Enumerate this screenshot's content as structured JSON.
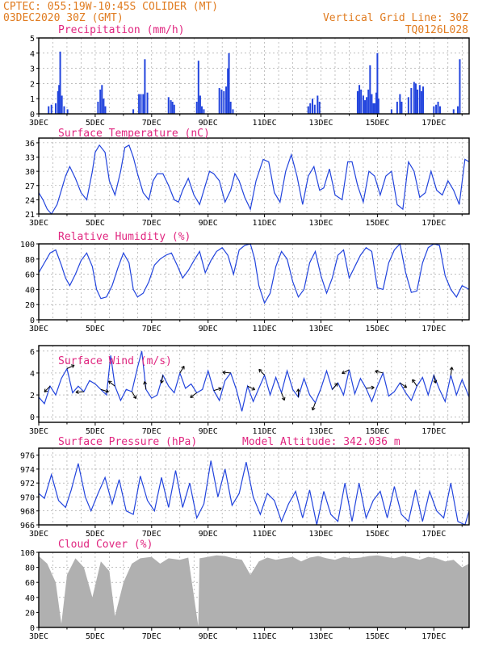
{
  "header": {
    "left_line1": "CPTEC:   055:19W-10:45S   COLIDER (MT)",
    "left_line2": "03DEC2020 30Z (GMT)",
    "right_line1": "Vertical Grid Line: 30Z",
    "right_line2": "TQ0126L028"
  },
  "colors": {
    "series": "#2244dd",
    "title": "#e0257f",
    "header": "#e07b1f",
    "cloud": "#b0b0b0"
  },
  "chart_data": [
    {
      "type": "bar",
      "title": "Precipitation (mm/h)",
      "ylim": [
        0,
        5
      ],
      "yticks": [
        0,
        1,
        2,
        3,
        4,
        5
      ],
      "xlim_days": [
        3,
        18.25
      ],
      "date_ticks": [
        "3DEC",
        "5DEC",
        "7DEC",
        "9DEC",
        "11DEC",
        "13DEC",
        "15DEC",
        "17DEC"
      ],
      "bars": [
        {
          "day": 3.35,
          "value": 0.5
        },
        {
          "day": 3.45,
          "value": 0.6
        },
        {
          "day": 3.6,
          "value": 0.7
        },
        {
          "day": 3.68,
          "value": 1.5
        },
        {
          "day": 3.72,
          "value": 1.9
        },
        {
          "day": 3.76,
          "value": 4.1
        },
        {
          "day": 3.82,
          "value": 1.2
        },
        {
          "day": 3.9,
          "value": 0.5
        },
        {
          "day": 4.02,
          "value": 0.3
        },
        {
          "day": 5.1,
          "value": 0.8
        },
        {
          "day": 5.18,
          "value": 1.6
        },
        {
          "day": 5.24,
          "value": 1.9
        },
        {
          "day": 5.3,
          "value": 1.0
        },
        {
          "day": 5.36,
          "value": 0.5
        },
        {
          "day": 6.35,
          "value": 0.3
        },
        {
          "day": 6.55,
          "value": 1.3
        },
        {
          "day": 6.62,
          "value": 1.3
        },
        {
          "day": 6.7,
          "value": 1.3
        },
        {
          "day": 6.76,
          "value": 3.6
        },
        {
          "day": 6.85,
          "value": 1.4
        },
        {
          "day": 7.6,
          "value": 1.1
        },
        {
          "day": 7.68,
          "value": 0.9
        },
        {
          "day": 7.74,
          "value": 0.8
        },
        {
          "day": 7.8,
          "value": 0.6
        },
        {
          "day": 8.6,
          "value": 0.8
        },
        {
          "day": 8.66,
          "value": 3.5
        },
        {
          "day": 8.72,
          "value": 1.2
        },
        {
          "day": 8.78,
          "value": 0.5
        },
        {
          "day": 8.85,
          "value": 0.3
        },
        {
          "day": 9.4,
          "value": 1.7
        },
        {
          "day": 9.48,
          "value": 1.6
        },
        {
          "day": 9.56,
          "value": 1.5
        },
        {
          "day": 9.64,
          "value": 1.8
        },
        {
          "day": 9.7,
          "value": 3.0
        },
        {
          "day": 9.74,
          "value": 4.0
        },
        {
          "day": 9.8,
          "value": 0.8
        },
        {
          "day": 9.88,
          "value": 0.3
        },
        {
          "day": 12.55,
          "value": 0.5
        },
        {
          "day": 12.62,
          "value": 0.7
        },
        {
          "day": 12.7,
          "value": 1.0
        },
        {
          "day": 12.78,
          "value": 0.6
        },
        {
          "day": 12.88,
          "value": 1.2
        },
        {
          "day": 12.95,
          "value": 0.8
        },
        {
          "day": 14.3,
          "value": 1.5
        },
        {
          "day": 14.36,
          "value": 1.9
        },
        {
          "day": 14.42,
          "value": 1.6
        },
        {
          "day": 14.5,
          "value": 1.2
        },
        {
          "day": 14.56,
          "value": 0.9
        },
        {
          "day": 14.62,
          "value": 1.1
        },
        {
          "day": 14.68,
          "value": 1.6
        },
        {
          "day": 14.74,
          "value": 3.2
        },
        {
          "day": 14.8,
          "value": 1.3
        },
        {
          "day": 14.86,
          "value": 0.7
        },
        {
          "day": 14.9,
          "value": 0.7
        },
        {
          "day": 14.96,
          "value": 1.4
        },
        {
          "day": 15.0,
          "value": 4.0
        },
        {
          "day": 15.04,
          "value": 1.0
        },
        {
          "day": 15.5,
          "value": 0.3
        },
        {
          "day": 15.7,
          "value": 0.8
        },
        {
          "day": 15.8,
          "value": 1.3
        },
        {
          "day": 15.86,
          "value": 0.8
        },
        {
          "day": 16.1,
          "value": 1.1
        },
        {
          "day": 16.2,
          "value": 1.7
        },
        {
          "day": 16.3,
          "value": 2.1
        },
        {
          "day": 16.36,
          "value": 2.0
        },
        {
          "day": 16.42,
          "value": 1.6
        },
        {
          "day": 16.5,
          "value": 1.9
        },
        {
          "day": 16.56,
          "value": 1.5
        },
        {
          "day": 16.62,
          "value": 1.8
        },
        {
          "day": 17.0,
          "value": 0.5
        },
        {
          "day": 17.08,
          "value": 0.6
        },
        {
          "day": 17.15,
          "value": 0.8
        },
        {
          "day": 17.22,
          "value": 0.5
        },
        {
          "day": 17.7,
          "value": 0.3
        },
        {
          "day": 17.85,
          "value": 0.5
        },
        {
          "day": 17.92,
          "value": 3.6
        }
      ]
    },
    {
      "type": "line",
      "title": "Surface Temperature (nC)",
      "ylim": [
        21,
        37
      ],
      "yticks": [
        21,
        24,
        27,
        30,
        33,
        36
      ],
      "xlim_days": [
        3,
        18.25
      ],
      "date_ticks": [
        "3DEC",
        "5DEC",
        "7DEC",
        "9DEC",
        "11DEC",
        "13DEC",
        "15DEC",
        "17DEC"
      ],
      "x": [
        3.0,
        3.15,
        3.3,
        3.45,
        3.65,
        3.8,
        3.95,
        4.1,
        4.3,
        4.5,
        4.7,
        4.9,
        5.0,
        5.15,
        5.35,
        5.5,
        5.7,
        5.9,
        6.05,
        6.2,
        6.35,
        6.5,
        6.7,
        6.9,
        7.05,
        7.2,
        7.4,
        7.6,
        7.8,
        7.95,
        8.1,
        8.3,
        8.5,
        8.7,
        8.9,
        9.05,
        9.2,
        9.4,
        9.6,
        9.8,
        9.95,
        10.1,
        10.3,
        10.5,
        10.7,
        10.95,
        11.15,
        11.35,
        11.55,
        11.75,
        11.95,
        12.15,
        12.35,
        12.55,
        12.75,
        12.95,
        13.1,
        13.3,
        13.5,
        13.75,
        13.95,
        14.1,
        14.3,
        14.5,
        14.7,
        14.9,
        15.1,
        15.3,
        15.5,
        15.7,
        15.9,
        16.1,
        16.3,
        16.5,
        16.7,
        16.9,
        17.1,
        17.3,
        17.5,
        17.7,
        17.9,
        18.1,
        18.25
      ],
      "y": [
        25.5,
        24.0,
        22.0,
        21.0,
        23.0,
        26.0,
        29.0,
        31.0,
        28.5,
        25.5,
        24.0,
        30.0,
        34.0,
        35.5,
        34.0,
        28.0,
        25.0,
        30.0,
        35.0,
        35.5,
        33.0,
        29.5,
        25.5,
        24.0,
        28.0,
        29.5,
        29.5,
        27.0,
        24.0,
        23.5,
        26.0,
        28.5,
        25.0,
        23.0,
        27.0,
        30.0,
        29.5,
        28.0,
        23.5,
        26.0,
        29.5,
        28.0,
        24.5,
        22.0,
        28.0,
        32.5,
        32.0,
        25.5,
        23.5,
        30.0,
        33.5,
        29.0,
        23.0,
        29.0,
        31.0,
        26.0,
        26.5,
        30.5,
        25.0,
        24.0,
        32.0,
        32.0,
        27.0,
        23.5,
        30.0,
        29.0,
        25.0,
        29.0,
        30.0,
        23.0,
        22.0,
        32.0,
        30.0,
        24.5,
        25.5,
        30.0,
        26.0,
        25.0,
        28.0,
        26.0,
        23.0,
        32.5,
        32.0
      ]
    },
    {
      "type": "line",
      "title": "Relative Humidity (%)",
      "ylim": [
        0,
        100
      ],
      "yticks": [
        0,
        20,
        40,
        60,
        80,
        100
      ],
      "xlim_days": [
        3,
        18.25
      ],
      "date_ticks": [
        "3DEC",
        "5DEC",
        "7DEC",
        "9DEC",
        "11DEC",
        "13DEC",
        "15DEC",
        "17DEC"
      ],
      "x": [
        3.0,
        3.2,
        3.4,
        3.6,
        3.8,
        3.95,
        4.1,
        4.3,
        4.5,
        4.7,
        4.9,
        5.05,
        5.2,
        5.4,
        5.6,
        5.8,
        6.0,
        6.2,
        6.35,
        6.5,
        6.7,
        6.9,
        7.1,
        7.3,
        7.5,
        7.7,
        7.9,
        8.1,
        8.3,
        8.5,
        8.7,
        8.9,
        9.1,
        9.3,
        9.5,
        9.7,
        9.9,
        10.1,
        10.3,
        10.5,
        10.65,
        10.8,
        11.0,
        11.2,
        11.4,
        11.6,
        11.8,
        12.0,
        12.2,
        12.4,
        12.6,
        12.8,
        13.0,
        13.2,
        13.4,
        13.6,
        13.8,
        14.0,
        14.2,
        14.4,
        14.6,
        14.8,
        15.0,
        15.2,
        15.4,
        15.6,
        15.8,
        16.0,
        16.2,
        16.4,
        16.6,
        16.8,
        17.0,
        17.2,
        17.4,
        17.6,
        17.8,
        18.0,
        18.25
      ],
      "y": [
        62,
        75,
        88,
        92,
        72,
        55,
        45,
        60,
        78,
        88,
        70,
        40,
        28,
        30,
        45,
        68,
        88,
        75,
        40,
        30,
        35,
        50,
        72,
        80,
        85,
        88,
        72,
        55,
        65,
        78,
        90,
        62,
        78,
        90,
        95,
        85,
        60,
        92,
        98,
        100,
        80,
        45,
        22,
        35,
        70,
        90,
        80,
        50,
        30,
        40,
        75,
        90,
        58,
        35,
        55,
        85,
        92,
        55,
        70,
        85,
        95,
        90,
        42,
        40,
        75,
        92,
        100,
        62,
        36,
        38,
        75,
        95,
        100,
        98,
        58,
        40,
        30,
        45,
        40
      ]
    },
    {
      "type": "line",
      "title": "Surface Wind (m/s)",
      "ylim": [
        -0.5,
        6.5
      ],
      "yticks": [
        0,
        2,
        4,
        6
      ],
      "xlim_days": [
        3,
        18.25
      ],
      "date_ticks": [
        "3DEC",
        "5DEC",
        "7DEC",
        "9DEC",
        "11DEC",
        "13DEC",
        "15DEC",
        "17DEC"
      ],
      "x": [
        3.0,
        3.2,
        3.4,
        3.6,
        3.8,
        4.0,
        4.2,
        4.4,
        4.6,
        4.8,
        5.0,
        5.2,
        5.4,
        5.55,
        5.7,
        5.9,
        6.1,
        6.3,
        6.5,
        6.65,
        6.8,
        7.0,
        7.2,
        7.4,
        7.6,
        7.8,
        8.0,
        8.2,
        8.4,
        8.6,
        8.8,
        9.0,
        9.2,
        9.4,
        9.6,
        9.8,
        10.0,
        10.2,
        10.4,
        10.6,
        10.8,
        11.0,
        11.2,
        11.4,
        11.6,
        11.8,
        12.0,
        12.2,
        12.4,
        12.6,
        12.8,
        13.0,
        13.2,
        13.4,
        13.6,
        13.8,
        14.0,
        14.2,
        14.4,
        14.6,
        14.8,
        15.0,
        15.2,
        15.4,
        15.6,
        15.8,
        16.0,
        16.2,
        16.4,
        16.6,
        16.8,
        17.0,
        17.2,
        17.4,
        17.6,
        17.8,
        18.0,
        18.25
      ],
      "y": [
        1.8,
        1.2,
        2.8,
        2.0,
        3.5,
        4.4,
        2.2,
        2.8,
        2.3,
        3.3,
        3.0,
        2.5,
        2.0,
        5.6,
        2.8,
        1.5,
        2.5,
        2.3,
        4.5,
        6.0,
        2.5,
        1.7,
        2.0,
        3.8,
        2.8,
        2.2,
        4.0,
        2.6,
        3.0,
        2.2,
        2.5,
        4.2,
        2.4,
        1.5,
        3.3,
        4.0,
        2.5,
        0.5,
        2.8,
        1.4,
        2.6,
        3.8,
        2.0,
        3.6,
        2.2,
        4.2,
        2.5,
        1.8,
        3.5,
        2.0,
        1.3,
        2.6,
        4.2,
        2.5,
        3.1,
        2.0,
        4.3,
        2.1,
        3.5,
        2.6,
        1.4,
        2.8,
        4.0,
        1.9,
        2.3,
        3.1,
        2.2,
        1.5,
        2.8,
        3.6,
        2.0,
        3.8,
        2.5,
        1.4,
        3.8,
        2.0,
        3.4,
        1.8
      ]
    },
    {
      "type": "line",
      "title": "Surface Pressure (hPa)",
      "annotation": "Model Altitude: 342.036 m",
      "ylim": [
        966,
        977
      ],
      "yticks": [
        966,
        968,
        970,
        972,
        974,
        976
      ],
      "xlim_days": [
        3,
        18.25
      ],
      "date_ticks": [
        "3DEC",
        "5DEC",
        "7DEC",
        "9DEC",
        "11DEC",
        "13DEC",
        "15DEC",
        "17DEC"
      ],
      "x": [
        3.0,
        3.2,
        3.45,
        3.7,
        3.95,
        4.15,
        4.4,
        4.65,
        4.85,
        5.1,
        5.35,
        5.6,
        5.85,
        6.1,
        6.35,
        6.6,
        6.85,
        7.1,
        7.35,
        7.6,
        7.85,
        8.1,
        8.35,
        8.6,
        8.85,
        9.1,
        9.35,
        9.6,
        9.85,
        10.1,
        10.35,
        10.6,
        10.85,
        11.1,
        11.35,
        11.6,
        11.85,
        12.1,
        12.35,
        12.6,
        12.85,
        13.1,
        13.35,
        13.6,
        13.85,
        14.1,
        14.35,
        14.6,
        14.85,
        15.1,
        15.35,
        15.6,
        15.85,
        16.1,
        16.35,
        16.6,
        16.85,
        17.1,
        17.35,
        17.6,
        17.85,
        18.1,
        18.25
      ],
      "y": [
        970.5,
        969.8,
        973.2,
        969.5,
        968.5,
        971.0,
        974.8,
        970.0,
        968.0,
        970.5,
        972.8,
        969.0,
        972.5,
        968.0,
        967.5,
        973.0,
        969.5,
        968.0,
        972.8,
        968.5,
        973.8,
        968.5,
        972.0,
        967.0,
        969.0,
        975.2,
        970.0,
        974.0,
        968.8,
        970.5,
        975.0,
        970.0,
        967.5,
        970.5,
        969.5,
        966.5,
        969.0,
        970.8,
        967.0,
        971.0,
        966.0,
        970.8,
        967.5,
        966.5,
        972.0,
        966.5,
        972.0,
        967.0,
        969.5,
        970.8,
        967.0,
        971.5,
        967.5,
        966.5,
        971.0,
        966.5,
        970.8,
        968.0,
        967.0,
        972.0,
        966.5,
        966.0,
        968.0
      ]
    },
    {
      "type": "bar",
      "title": "Cloud Cover (%)",
      "ylim": [
        0,
        100
      ],
      "yticks": [
        0,
        20,
        40,
        60,
        80,
        100
      ],
      "xlim_days": [
        3,
        18.25
      ],
      "date_ticks": [
        "3DEC",
        "5DEC",
        "7DEC",
        "9DEC",
        "11DEC",
        "13DEC",
        "15DEC",
        "17DEC"
      ],
      "x": [
        3.0,
        3.3,
        3.6,
        3.8,
        4.0,
        4.3,
        4.6,
        4.9,
        5.2,
        5.5,
        5.7,
        6.0,
        6.3,
        6.6,
        7.0,
        7.3,
        7.6,
        8.0,
        8.3,
        8.65,
        8.7,
        9.0,
        9.3,
        9.6,
        9.9,
        10.2,
        10.5,
        10.8,
        11.1,
        11.4,
        11.7,
        12.0,
        12.3,
        12.6,
        12.9,
        13.2,
        13.5,
        13.8,
        14.1,
        14.4,
        14.7,
        15.0,
        15.3,
        15.6,
        15.9,
        16.2,
        16.5,
        16.8,
        17.1,
        17.4,
        17.7,
        18.0,
        18.25
      ],
      "y": [
        95,
        85,
        60,
        5,
        70,
        92,
        80,
        40,
        88,
        75,
        15,
        60,
        85,
        92,
        94,
        85,
        92,
        90,
        93,
        2,
        92,
        94,
        96,
        95,
        92,
        90,
        70,
        88,
        93,
        90,
        92,
        94,
        88,
        93,
        95,
        92,
        90,
        94,
        92,
        93,
        95,
        96,
        94,
        92,
        95,
        93,
        90,
        94,
        92,
        88,
        90,
        80,
        85
      ]
    }
  ]
}
